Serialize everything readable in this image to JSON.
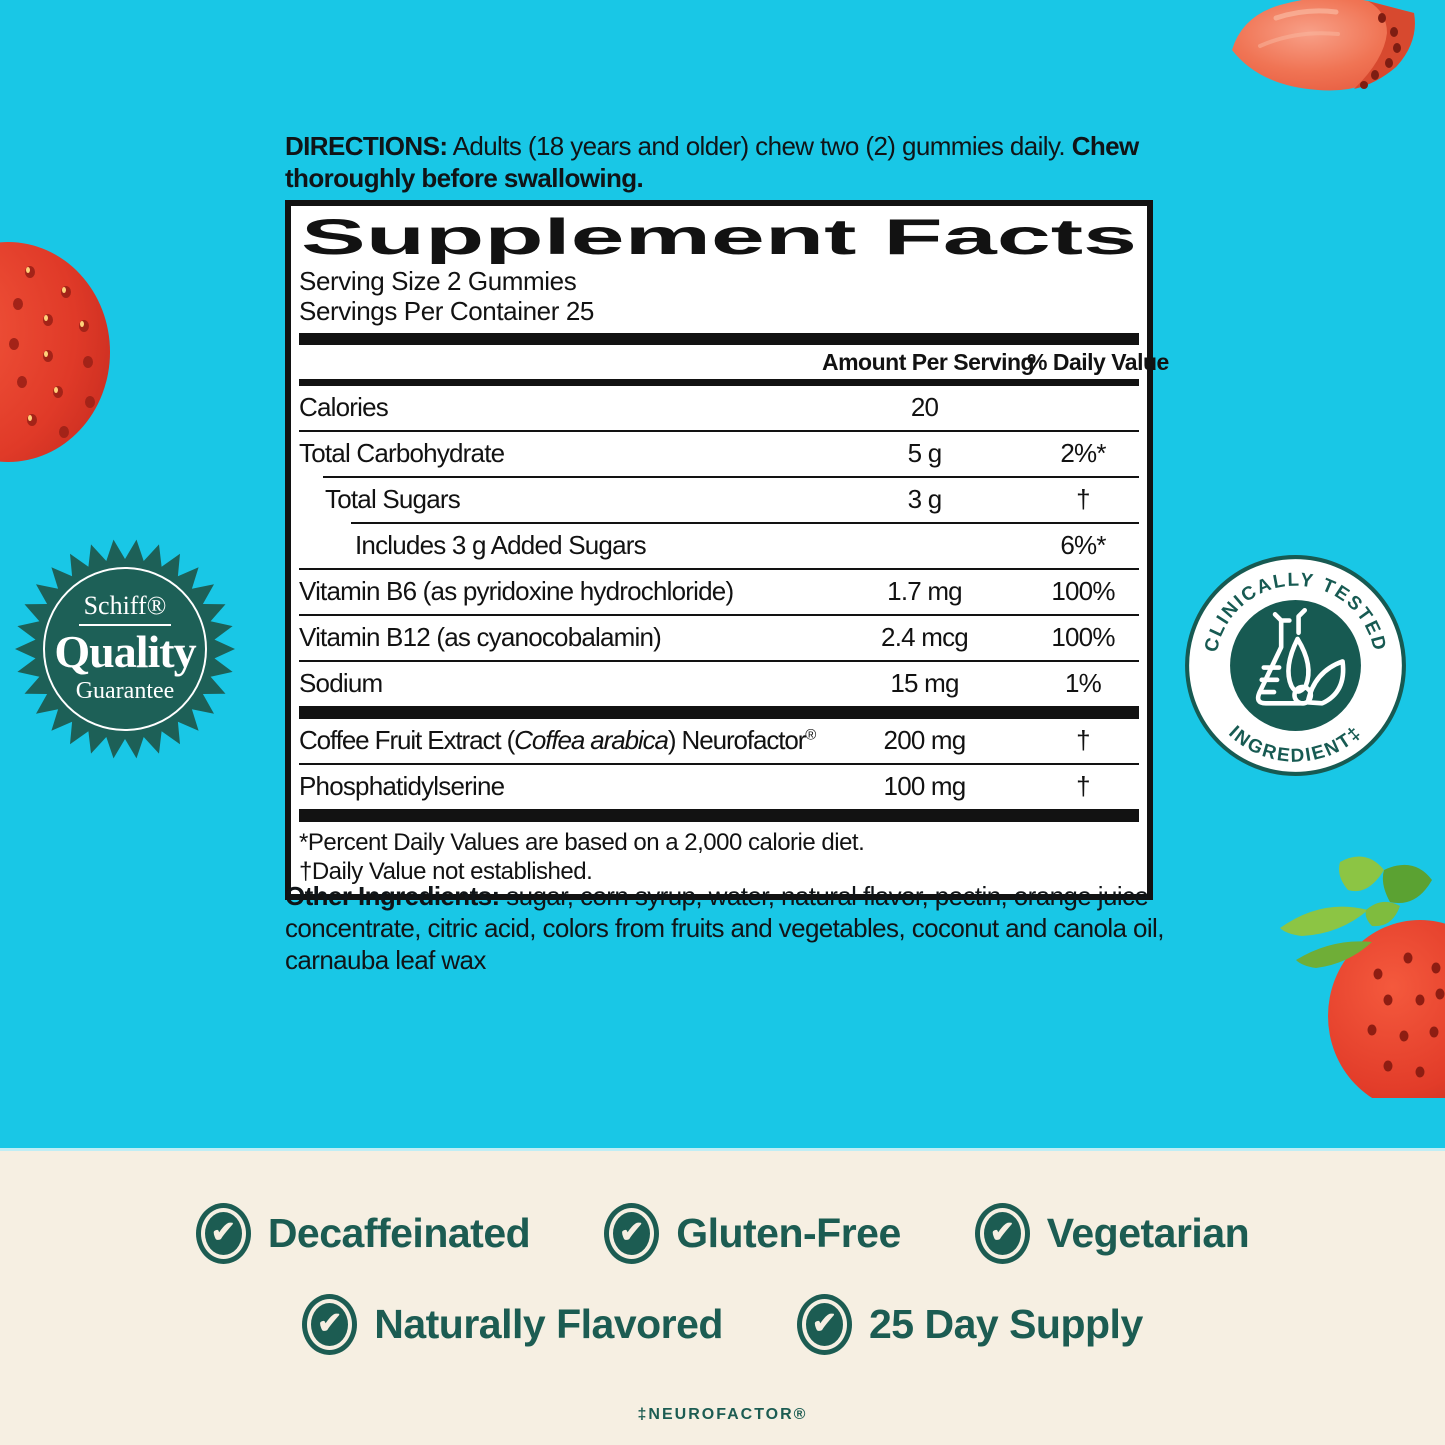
{
  "colors": {
    "background_cyan": "#19c7e6",
    "background_cream": "#f6efe2",
    "brand_teal": "#1c5c52",
    "label_black": "#121212",
    "strawberry_red": "#e04830"
  },
  "directions": {
    "label": "DIRECTIONS:",
    "line1_text": " Adults (18 years and older) chew two (2) gummies daily. ",
    "line1_bold_end": "Chew",
    "line2_bold": "thoroughly before swallowing."
  },
  "supplement_facts": {
    "title": "Supplement Facts",
    "serving_size": "Serving Size 2 Gummies",
    "servings_per_container": "Servings Per Container 25",
    "col_amount": "Amount Per Serving",
    "col_dv": "% Daily Value",
    "rows": [
      {
        "name": "Calories",
        "amount": "20",
        "dv": ""
      },
      {
        "name": "Total Carbohydrate",
        "amount": "5 g",
        "dv": "2%*"
      },
      {
        "name": "Total Sugars",
        "amount": "3 g",
        "dv": "†"
      },
      {
        "name": "Includes 3 g Added Sugars",
        "amount": "",
        "dv": "6%*"
      },
      {
        "name": "Vitamin B6 (as pyridoxine hydrochloride)",
        "amount": "1.7 mg",
        "dv": "100%"
      },
      {
        "name": "Vitamin B12 (as cyanocobalamin)",
        "amount": "2.4 mcg",
        "dv": "100%"
      },
      {
        "name": "Sodium",
        "amount": "15 mg",
        "dv": "1%"
      },
      {
        "name_pre": "Coffee Fruit Extract (",
        "name_italic": "Coffea arabica",
        "name_post": ") Neurofactor",
        "reg_mark": "®",
        "amount": "200 mg",
        "dv": "†"
      },
      {
        "name": "Phosphatidylserine",
        "amount": "100 mg",
        "dv": "†"
      }
    ],
    "footnotes": [
      "*Percent Daily Values are based on a 2,000 calorie diet.",
      "†Daily Value not established."
    ]
  },
  "other_ingredients": {
    "label": "Other Ingredients:",
    "text": " sugar, corn syrup, water, natural flavor, pectin, orange juice concentrate, citric acid, colors from fruits and vegetables, coconut and canola oil, carnauba leaf wax"
  },
  "schiff_badge": {
    "brand": "Schiff®",
    "word": "Quality",
    "sub": "Guarantee"
  },
  "clinical_badge": {
    "top_text": "CLINICALLY TESTED",
    "bottom_text": "INGREDIENT‡"
  },
  "features": {
    "row1": [
      "Decaffeinated",
      "Gluten-Free",
      "Vegetarian"
    ],
    "row2": [
      "Naturally Flavored",
      "25 Day Supply"
    ]
  },
  "footer": {
    "neurofactor_note": "‡NEUROFACTOR®"
  }
}
